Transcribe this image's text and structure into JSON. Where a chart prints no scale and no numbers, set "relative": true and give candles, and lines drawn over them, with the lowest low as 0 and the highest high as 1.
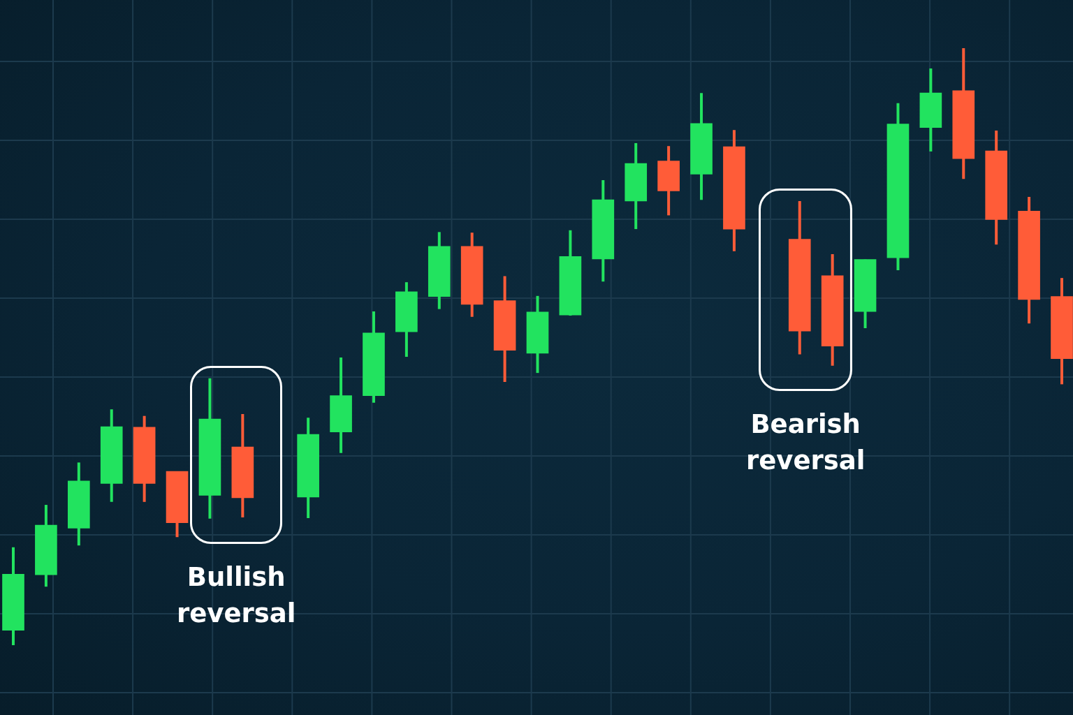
{
  "chart_data": {
    "type": "candlestick",
    "relative": true,
    "grid": true,
    "categories": [
      null,
      null,
      null,
      null,
      null,
      null,
      null,
      null,
      null,
      null,
      null,
      null,
      null,
      null,
      null,
      null,
      null,
      null,
      null,
      null,
      null,
      null,
      null,
      null,
      null,
      null,
      null,
      null,
      null,
      null,
      null,
      null,
      null
    ],
    "ohlc": [
      [
        0.025,
        0.164,
        0,
        0.119
      ],
      [
        0.118,
        0.235,
        0.098,
        0.201
      ],
      [
        0.196,
        0.306,
        0.167,
        0.275
      ],
      [
        0.271,
        0.395,
        0.24,
        0.366
      ],
      [
        0.365,
        0.384,
        0.24,
        0.271
      ],
      [
        0.291,
        0.291,
        0.181,
        0.205
      ],
      [
        0.251,
        0.447,
        0.212,
        0.379
      ],
      [
        0.332,
        0.387,
        0.214,
        0.247
      ],
      null,
      [
        0.248,
        0.381,
        0.213,
        0.353
      ],
      [
        0.357,
        0.482,
        0.322,
        0.418
      ],
      [
        0.418,
        0.559,
        0.406,
        0.523
      ],
      [
        0.525,
        0.608,
        0.483,
        0.592
      ],
      [
        0.584,
        0.692,
        0.563,
        0.668
      ],
      [
        0.668,
        0.691,
        0.55,
        0.571
      ],
      [
        0.577,
        0.618,
        0.441,
        0.494
      ],
      [
        0.489,
        0.585,
        0.456,
        0.558
      ],
      [
        0.553,
        0.695,
        0.552,
        0.651
      ],
      [
        0.647,
        0.779,
        0.609,
        0.746
      ],
      [
        0.744,
        0.841,
        0.697,
        0.807
      ],
      [
        0.811,
        0.836,
        0.72,
        0.761
      ],
      [
        0.789,
        0.925,
        0.746,
        0.874
      ],
      [
        0.835,
        0.863,
        0.66,
        0.697
      ],
      null,
      [
        0.68,
        0.744,
        0.487,
        0.526
      ],
      [
        0.619,
        0.655,
        0.468,
        0.501
      ],
      [
        0.559,
        0.646,
        0.531,
        0.646
      ],
      [
        0.649,
        0.908,
        0.628,
        0.873
      ],
      [
        0.867,
        0.966,
        0.827,
        0.925
      ],
      [
        0.929,
        1,
        0.781,
        0.815
      ],
      [
        0.828,
        0.862,
        0.671,
        0.713
      ],
      [
        0.727,
        0.751,
        0.539,
        0.579
      ],
      [
        0.584,
        0.615,
        0.437,
        0.48
      ]
    ],
    "colors": [
      "#22e35f",
      "#22e35f",
      "#22e35f",
      "#22e35f",
      "#ff5c38",
      "#ff5c38",
      "#22e35f",
      "#ff5c38",
      null,
      "#22e35f",
      "#22e35f",
      "#22e35f",
      "#22e35f",
      "#22e35f",
      "#ff5c38",
      "#ff5c38",
      "#22e35f",
      "#22e35f",
      "#22e35f",
      "#22e35f",
      "#ff5c38",
      "#22e35f",
      "#ff5c38",
      null,
      "#ff5c38",
      "#ff5c38",
      "#22e35f",
      "#22e35f",
      "#22e35f",
      "#ff5c38",
      "#ff5c38",
      "#ff5c38",
      "#ff5c38"
    ],
    "annotations": [
      "Bullish reversal",
      "Bearish reversal"
    ]
  }
}
